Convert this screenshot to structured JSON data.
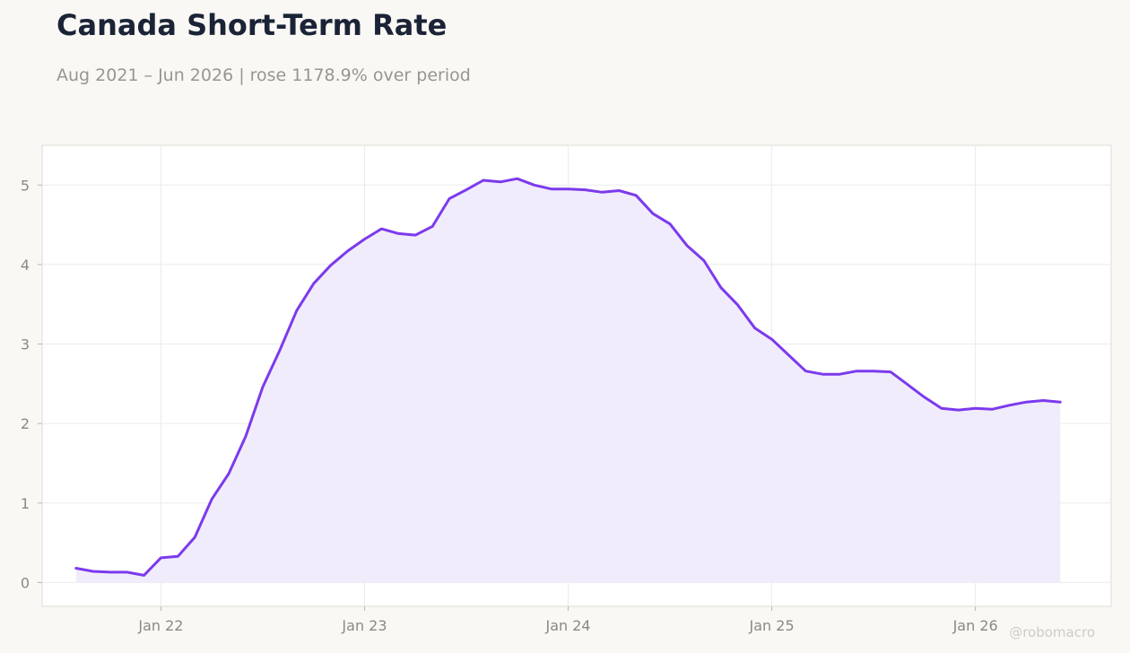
{
  "header": {
    "title": "Canada Short-Term Rate",
    "subtitle": "Aug 2021 – Jun 2026 | rose 1178.9% over period"
  },
  "watermark": "@robomacro",
  "colors": {
    "line": "#7c3aed",
    "fill": "#f1ecfc",
    "grid": "#ecebea",
    "frame": "#dddbd6",
    "plot_bg": "#ffffff",
    "page_bg": "#f9f8f5"
  },
  "chart_data": {
    "type": "area",
    "title": "Canada Short-Term Rate",
    "xlabel": "",
    "ylabel": "",
    "grid": true,
    "legend": "none",
    "x_ticks": [
      {
        "label": "Jan 22",
        "date": "2022-01"
      },
      {
        "label": "Jan 23",
        "date": "2023-01"
      },
      {
        "label": "Jan 24",
        "date": "2024-01"
      },
      {
        "label": "Jan 25",
        "date": "2025-01"
      },
      {
        "label": "Jan 26",
        "date": "2026-01"
      }
    ],
    "y_ticks": [
      0,
      1,
      2,
      3,
      4,
      5
    ],
    "xlim": [
      "2021-06",
      "2026-09"
    ],
    "ylim": [
      -0.3,
      5.5
    ],
    "series": [
      {
        "x": [
          "2021-08",
          "2021-09",
          "2021-10",
          "2021-11",
          "2021-12",
          "2022-01",
          "2022-02",
          "2022-03",
          "2022-04",
          "2022-05",
          "2022-06",
          "2022-07",
          "2022-08",
          "2022-09",
          "2022-10",
          "2022-11",
          "2022-12",
          "2023-01",
          "2023-02",
          "2023-03",
          "2023-04",
          "2023-05",
          "2023-06",
          "2023-07",
          "2023-08",
          "2023-09",
          "2023-10",
          "2023-11",
          "2023-12",
          "2024-01",
          "2024-02",
          "2024-03",
          "2024-04",
          "2024-05",
          "2024-06",
          "2024-07",
          "2024-08",
          "2024-09",
          "2024-10",
          "2024-11",
          "2024-12",
          "2025-01",
          "2025-02",
          "2025-03",
          "2025-04",
          "2025-05",
          "2025-06",
          "2025-07",
          "2025-08",
          "2025-09",
          "2025-10",
          "2025-11",
          "2025-12",
          "2026-01",
          "2026-02",
          "2026-03",
          "2026-04",
          "2026-05",
          "2026-06"
        ],
        "values": [
          0.18,
          0.14,
          0.13,
          0.13,
          0.09,
          0.31,
          0.33,
          0.57,
          1.05,
          1.37,
          1.84,
          2.46,
          2.92,
          3.42,
          3.76,
          3.99,
          4.17,
          4.32,
          4.45,
          4.39,
          4.37,
          4.48,
          4.83,
          4.94,
          5.06,
          5.04,
          5.08,
          5.0,
          4.95,
          4.95,
          4.94,
          4.91,
          4.93,
          4.87,
          4.64,
          4.51,
          4.24,
          4.05,
          3.71,
          3.49,
          3.2,
          3.06,
          2.86,
          2.66,
          2.62,
          2.62,
          2.66,
          2.66,
          2.65,
          2.49,
          2.33,
          2.19,
          2.17,
          2.19,
          2.18,
          2.23,
          2.27,
          2.29,
          2.27
        ]
      }
    ]
  }
}
